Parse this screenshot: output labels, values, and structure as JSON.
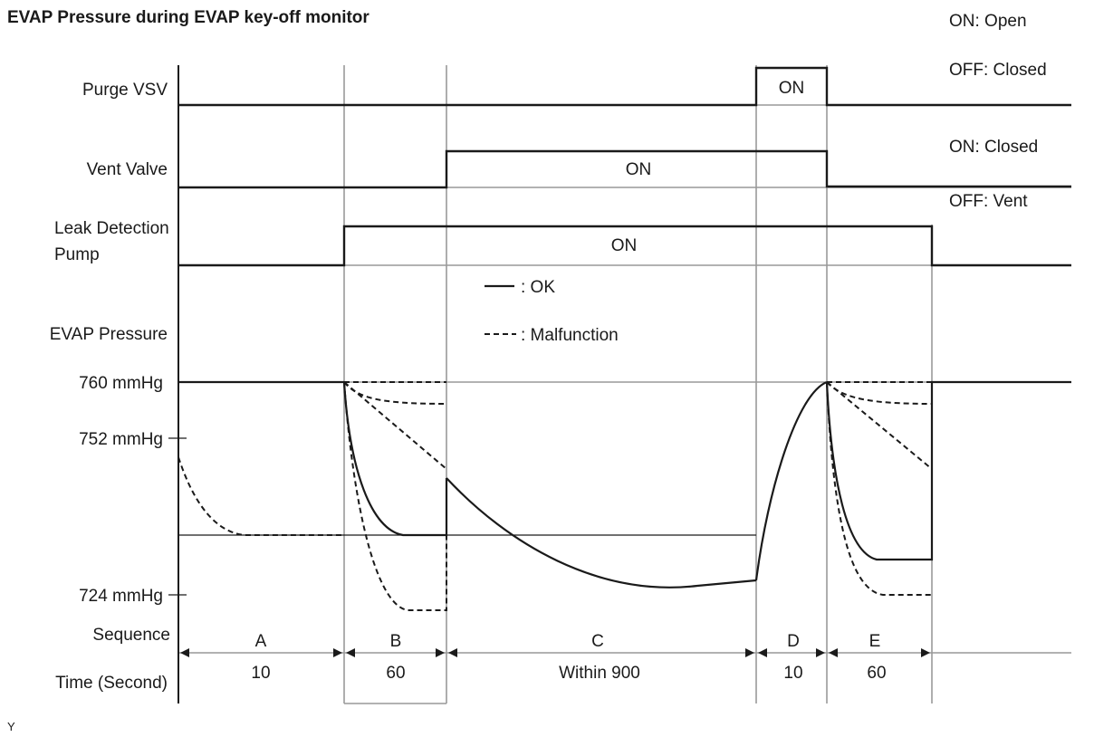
{
  "title": "EVAP Pressure during EVAP key-off monitor",
  "state_notes": {
    "purge_on": "ON: Open",
    "purge_off": "OFF: Closed",
    "vent_on": "ON: Closed",
    "vent_off": "OFF: Vent"
  },
  "signals": {
    "purge_vsv": {
      "label": "Purge VSV",
      "on_label": "ON"
    },
    "vent_valve": {
      "label": "Vent Valve",
      "on_label": "ON"
    },
    "leak_pump": {
      "label_line1": "Leak Detection",
      "label_line2": "Pump",
      "on_label": "ON"
    }
  },
  "legend": {
    "ok": ": OK",
    "malfunction": ": Malfunction"
  },
  "pressure": {
    "label": "EVAP Pressure",
    "levels": [
      "760 mmHg",
      "752 mmHg",
      "724 mmHg"
    ]
  },
  "sequence": {
    "row_label": "Sequence",
    "time_label": "Time (Second)",
    "phases": [
      {
        "name": "A",
        "time": "10"
      },
      {
        "name": "B",
        "time": "60"
      },
      {
        "name": "C",
        "time": "Within 900"
      },
      {
        "name": "D",
        "time": "10"
      },
      {
        "name": "E",
        "time": "60"
      }
    ]
  },
  "footer_mark": "Y"
}
